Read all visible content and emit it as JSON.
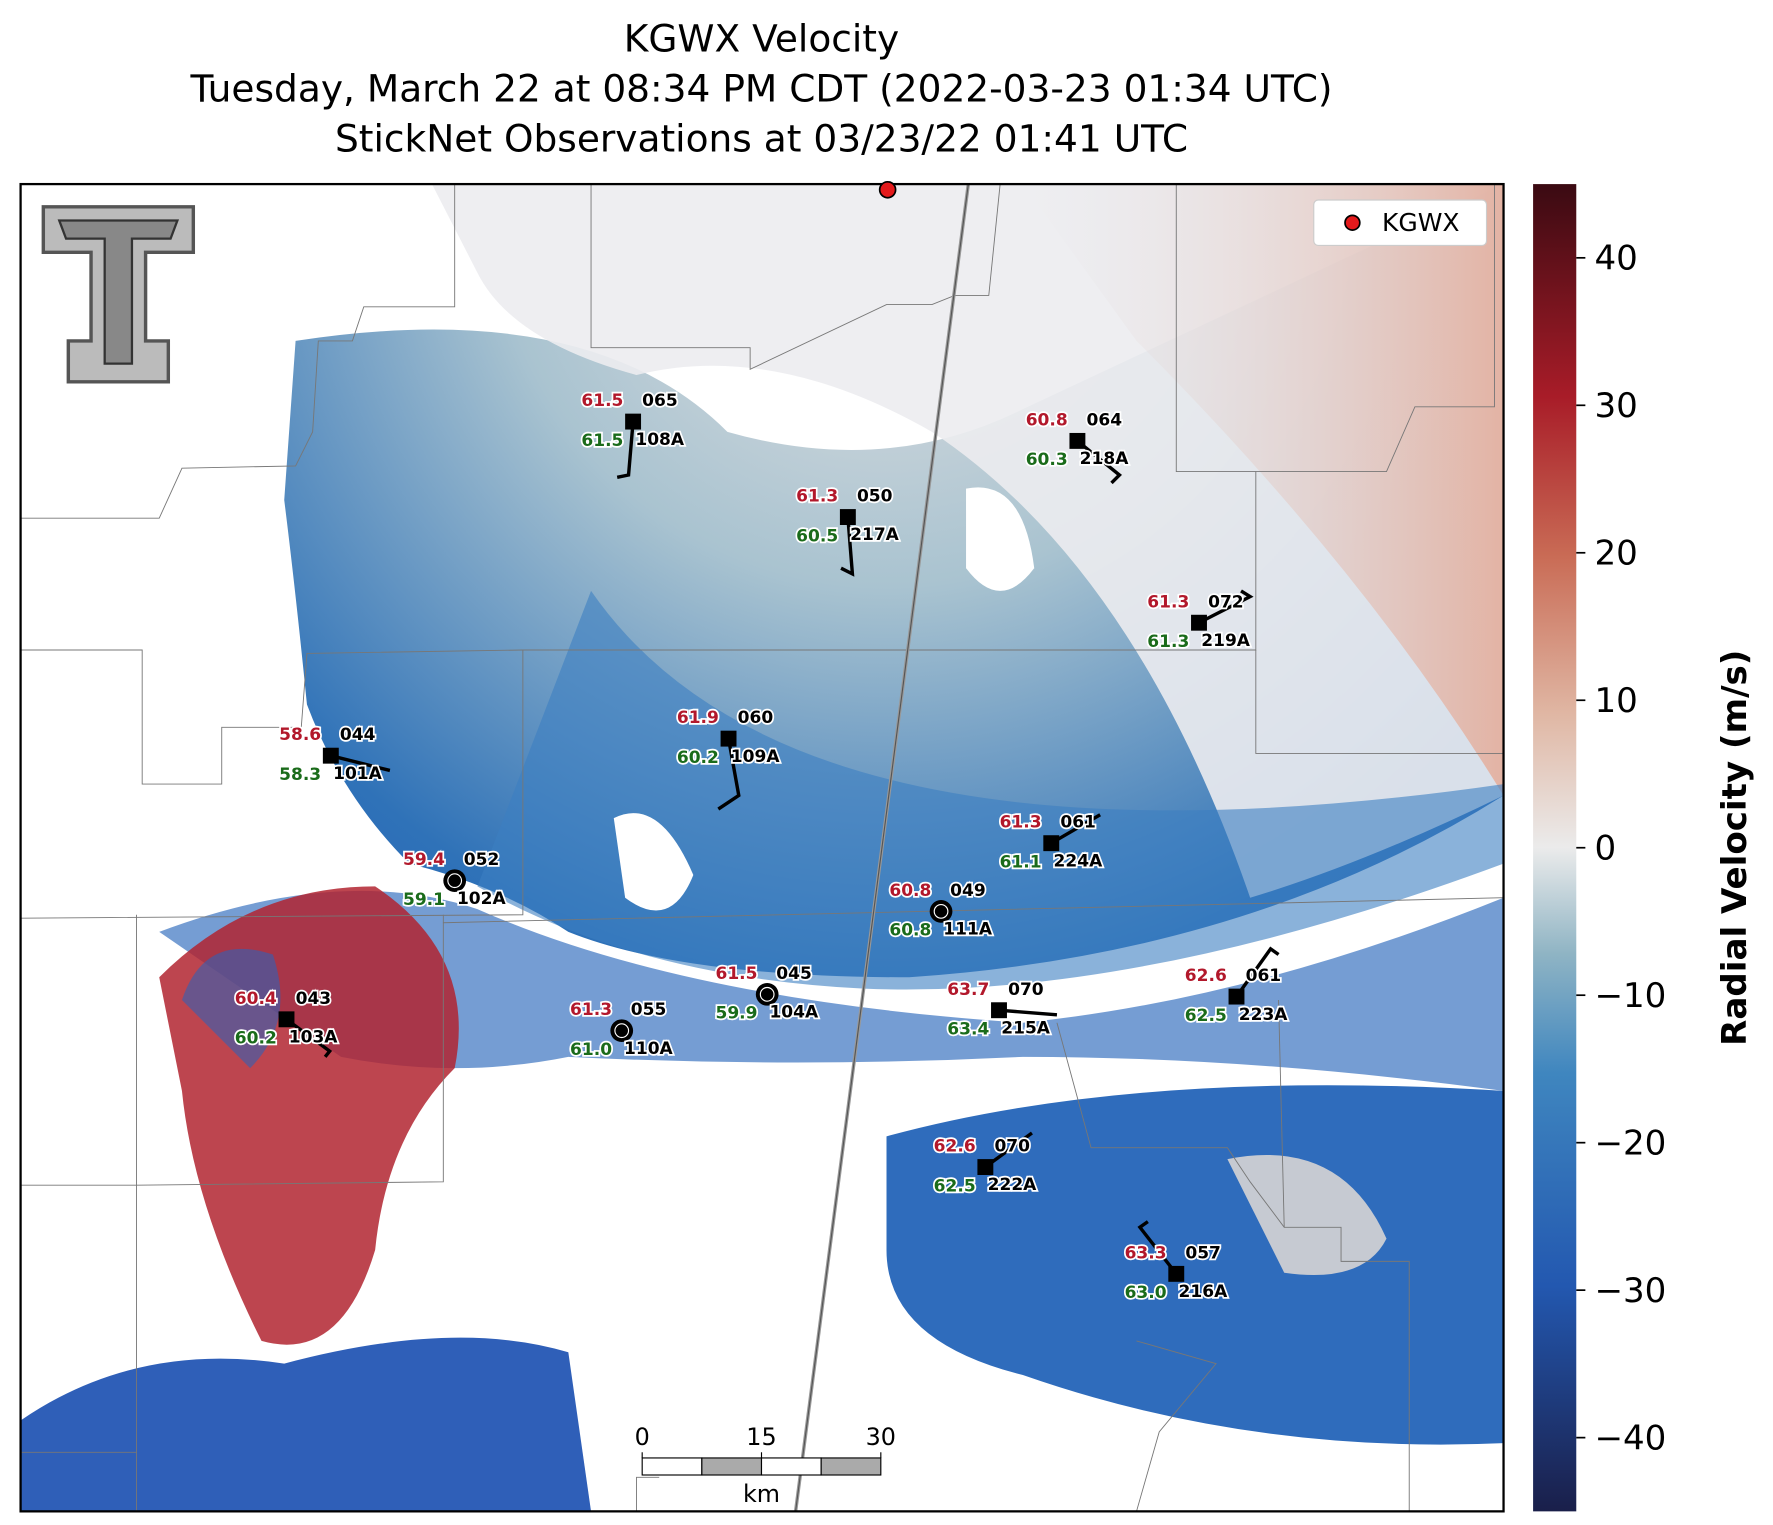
{
  "title": [
    "KGWX Velocity",
    "Tuesday, March 22 at 08:34 PM CDT (2022-03-23 01:34 UTC)",
    "StickNet Observations at 03/23/22 01:41 UTC"
  ],
  "legend": "KGWX",
  "colorbar": {
    "label": "Radial Velocity (m/s)",
    "lim": [
      -45,
      45
    ],
    "ticks": [
      {
        "value": -40,
        "label": "−40"
      },
      {
        "value": -30,
        "label": "−30"
      },
      {
        "value": -20,
        "label": "−20"
      },
      {
        "value": -10,
        "label": "−10"
      },
      0,
      10,
      20,
      30,
      40
    ]
  },
  "scale_bar": {
    "ticks": [
      0,
      15,
      30
    ],
    "unit": "km"
  },
  "stations": [
    {
      "id": "108A",
      "temperature": "61.5",
      "dewpoint": "61.5",
      "code": "065"
    },
    {
      "id": "218A",
      "temperature": "60.8",
      "dewpoint": "60.3",
      "code": "064"
    },
    {
      "id": "217A",
      "temperature": "61.3",
      "dewpoint": "60.5",
      "code": "050"
    },
    {
      "id": "219A",
      "temperature": "61.3",
      "dewpoint": "61.3",
      "code": "072"
    },
    {
      "id": "109A",
      "temperature": "61.9",
      "dewpoint": "60.2",
      "code": "060"
    },
    {
      "id": "101A",
      "temperature": "58.6",
      "dewpoint": "58.3",
      "code": "044"
    },
    {
      "id": "224A",
      "temperature": "61.3",
      "dewpoint": "61.1",
      "code": "061"
    },
    {
      "id": "102A",
      "temperature": "59.4",
      "dewpoint": "59.1",
      "code": "052"
    },
    {
      "id": "111A",
      "temperature": "60.8",
      "dewpoint": "60.8",
      "code": "049"
    },
    {
      "id": "104A",
      "temperature": "61.5",
      "dewpoint": "59.9",
      "code": "045"
    },
    {
      "id": "215A",
      "temperature": "63.7",
      "dewpoint": "63.4",
      "code": "070"
    },
    {
      "id": "223A",
      "temperature": "62.6",
      "dewpoint": "62.5",
      "code": "061"
    },
    {
      "id": "103A",
      "temperature": "60.4",
      "dewpoint": "60.2",
      "code": "043"
    },
    {
      "id": "110A",
      "temperature": "61.3",
      "dewpoint": "61.0",
      "code": "055"
    },
    {
      "id": "222A",
      "temperature": "62.6",
      "dewpoint": "62.5",
      "code": "070"
    },
    {
      "id": "216A",
      "temperature": "63.3",
      "dewpoint": "63.0",
      "code": "057"
    }
  ]
}
